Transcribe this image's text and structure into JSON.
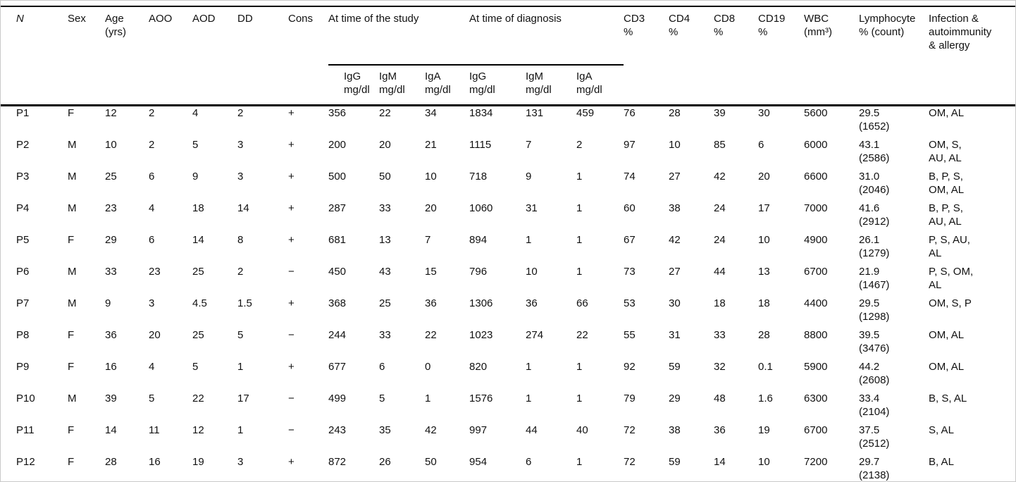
{
  "table": {
    "headers": {
      "n": "N",
      "sex": "Sex",
      "age": "Age\n(yrs)",
      "aoo": "AOO",
      "aod": "AOD",
      "dd": "DD",
      "cons": "Cons",
      "study_group": "At time of the study",
      "diagnosis_group": "At time of diagnosis",
      "igg_study": "IgG\nmg/dl",
      "igm_study": "IgM\nmg/dl",
      "iga_study": "IgA\nmg/dl",
      "igg_diag": "IgG\nmg/dl",
      "igm_diag": "IgM\nmg/dl",
      "iga_diag": "IgA\nmg/dl",
      "cd3": "CD3\n%",
      "cd4": "CD4\n%",
      "cd8": "CD8\n%",
      "cd19": "CD19\n%",
      "wbc": "WBC\n(mm³)",
      "lymphocyte": "Lymphocyte\n% (count)",
      "infection": "Infection &\nautoimmunity\n& allergy"
    },
    "rows": [
      {
        "n": "P1",
        "sex": "F",
        "age": "12",
        "aoo": "2",
        "aod": "4",
        "dd": "2",
        "cons": "+",
        "igg_study": "356",
        "igm_study": "22",
        "iga_study": "34",
        "igg_diag": "1834",
        "igm_diag": "131",
        "iga_diag": "459",
        "cd3": "76",
        "cd4": "28",
        "cd8": "39",
        "cd19": "30",
        "wbc": "5600",
        "lymphocyte": "29.5\n(1652)",
        "infection": "OM, AL"
      },
      {
        "n": "P2",
        "sex": "M",
        "age": "10",
        "aoo": "2",
        "aod": "5",
        "dd": "3",
        "cons": "+",
        "igg_study": "200",
        "igm_study": "20",
        "iga_study": "21",
        "igg_diag": "1115",
        "igm_diag": "7",
        "iga_diag": "2",
        "cd3": "97",
        "cd4": "10",
        "cd8": "85",
        "cd19": "6",
        "wbc": "6000",
        "lymphocyte": "43.1\n(2586)",
        "infection": "OM, S,\nAU, AL"
      },
      {
        "n": "P3",
        "sex": "M",
        "age": "25",
        "aoo": "6",
        "aod": "9",
        "dd": "3",
        "cons": "+",
        "igg_study": "500",
        "igm_study": "50",
        "iga_study": "10",
        "igg_diag": "718",
        "igm_diag": "9",
        "iga_diag": "1",
        "cd3": "74",
        "cd4": "27",
        "cd8": "42",
        "cd19": "20",
        "wbc": "6600",
        "lymphocyte": "31.0\n(2046)",
        "infection": "B, P, S,\nOM, AL"
      },
      {
        "n": "P4",
        "sex": "M",
        "age": "23",
        "aoo": "4",
        "aod": "18",
        "dd": "14",
        "cons": "+",
        "igg_study": "287",
        "igm_study": "33",
        "iga_study": "20",
        "igg_diag": "1060",
        "igm_diag": "31",
        "iga_diag": "1",
        "cd3": "60",
        "cd4": "38",
        "cd8": "24",
        "cd19": "17",
        "wbc": "7000",
        "lymphocyte": "41.6\n(2912)",
        "infection": "B, P, S,\nAU, AL"
      },
      {
        "n": "P5",
        "sex": "F",
        "age": "29",
        "aoo": "6",
        "aod": "14",
        "dd": "8",
        "cons": "+",
        "igg_study": "681",
        "igm_study": "13",
        "iga_study": "7",
        "igg_diag": "894",
        "igm_diag": "1",
        "iga_diag": "1",
        "cd3": "67",
        "cd4": "42",
        "cd8": "24",
        "cd19": "10",
        "wbc": "4900",
        "lymphocyte": "26.1\n(1279)",
        "infection": "P, S, AU,\nAL"
      },
      {
        "n": "P6",
        "sex": "M",
        "age": "33",
        "aoo": "23",
        "aod": "25",
        "dd": "2",
        "cons": "−",
        "igg_study": "450",
        "igm_study": "43",
        "iga_study": "15",
        "igg_diag": "796",
        "igm_diag": "10",
        "iga_diag": "1",
        "cd3": "73",
        "cd4": "27",
        "cd8": "44",
        "cd19": "13",
        "wbc": "6700",
        "lymphocyte": "21.9\n(1467)",
        "infection": "P, S, OM,\nAL"
      },
      {
        "n": "P7",
        "sex": "M",
        "age": "9",
        "aoo": "3",
        "aod": "4.5",
        "dd": "1.5",
        "cons": "+",
        "igg_study": "368",
        "igm_study": "25",
        "iga_study": "36",
        "igg_diag": "1306",
        "igm_diag": "36",
        "iga_diag": "66",
        "cd3": "53",
        "cd4": "30",
        "cd8": "18",
        "cd19": "18",
        "wbc": "4400",
        "lymphocyte": "29.5\n(1298)",
        "infection": "OM, S, P"
      },
      {
        "n": "P8",
        "sex": "F",
        "age": "36",
        "aoo": "20",
        "aod": "25",
        "dd": "5",
        "cons": "−",
        "igg_study": "244",
        "igm_study": "33",
        "iga_study": "22",
        "igg_diag": "1023",
        "igm_diag": "274",
        "iga_diag": "22",
        "cd3": "55",
        "cd4": "31",
        "cd8": "33",
        "cd19": "28",
        "wbc": "8800",
        "lymphocyte": "39.5\n(3476)",
        "infection": "OM, AL"
      },
      {
        "n": "P9",
        "sex": "F",
        "age": "16",
        "aoo": "4",
        "aod": "5",
        "dd": "1",
        "cons": "+",
        "igg_study": "677",
        "igm_study": "6",
        "iga_study": "0",
        "igg_diag": "820",
        "igm_diag": "1",
        "iga_diag": "1",
        "cd3": "92",
        "cd4": "59",
        "cd8": "32",
        "cd19": "0.1",
        "wbc": "5900",
        "lymphocyte": "44.2\n(2608)",
        "infection": "OM, AL"
      },
      {
        "n": "P10",
        "sex": "M",
        "age": "39",
        "aoo": "5",
        "aod": "22",
        "dd": "17",
        "cons": "−",
        "igg_study": "499",
        "igm_study": "5",
        "iga_study": "1",
        "igg_diag": "1576",
        "igm_diag": "1",
        "iga_diag": "1",
        "cd3": "79",
        "cd4": "29",
        "cd8": "48",
        "cd19": "1.6",
        "wbc": "6300",
        "lymphocyte": "33.4\n(2104)",
        "infection": "B, S, AL"
      },
      {
        "n": "P11",
        "sex": "F",
        "age": "14",
        "aoo": "11",
        "aod": "12",
        "dd": "1",
        "cons": "−",
        "igg_study": "243",
        "igm_study": "35",
        "iga_study": "42",
        "igg_diag": "997",
        "igm_diag": "44",
        "iga_diag": "40",
        "cd3": "72",
        "cd4": "38",
        "cd8": "36",
        "cd19": "19",
        "wbc": "6700",
        "lymphocyte": "37.5\n(2512)",
        "infection": "S, AL"
      },
      {
        "n": "P12",
        "sex": "F",
        "age": "28",
        "aoo": "16",
        "aod": "19",
        "dd": "3",
        "cons": "+",
        "igg_study": "872",
        "igm_study": "26",
        "iga_study": "50",
        "igg_diag": "954",
        "igm_diag": "6",
        "iga_diag": "1",
        "cd3": "72",
        "cd4": "59",
        "cd8": "14",
        "cd19": "10",
        "wbc": "7200",
        "lymphocyte": "29.7\n(2138)",
        "infection": "B, AL"
      }
    ]
  }
}
